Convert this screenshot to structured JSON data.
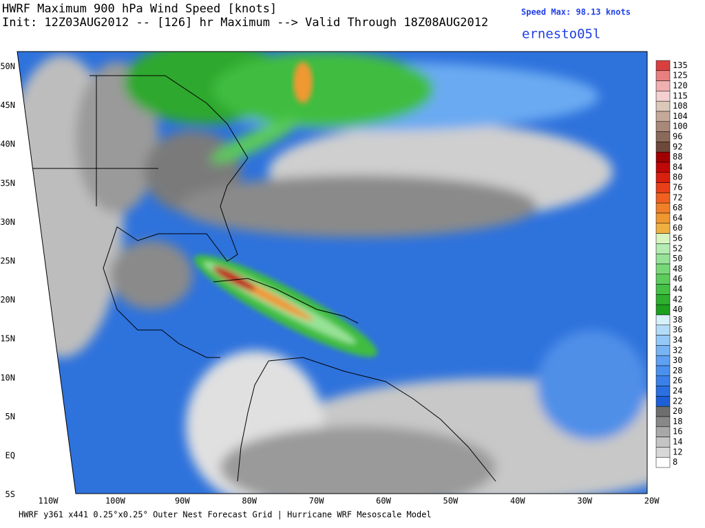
{
  "header": {
    "title": "HWRF Maximum 900 hPa Wind Speed [knots]",
    "subtitle": "Init: 12Z03AUG2012 -- [126] hr Maximum --> Valid Through 18Z08AUG2012",
    "speed_max": "Speed Max: 98.13 knots",
    "storm": "ernesto05l"
  },
  "lat_labels": [
    "50N",
    "45N",
    "40N",
    "35N",
    "30N",
    "25N",
    "20N",
    "15N",
    "10N",
    "5N",
    "EQ",
    "5S"
  ],
  "lon_labels": [
    "110W",
    "100W",
    "90W",
    "80W",
    "70W",
    "60W",
    "50W",
    "40W",
    "30W",
    "20W"
  ],
  "colorbar": {
    "levels": [
      135,
      125,
      120,
      115,
      108,
      104,
      100,
      96,
      92,
      88,
      84,
      80,
      76,
      72,
      68,
      64,
      60,
      56,
      52,
      50,
      48,
      46,
      44,
      42,
      40,
      38,
      36,
      34,
      32,
      30,
      28,
      26,
      24,
      22,
      20,
      18,
      16,
      14,
      12,
      8
    ],
    "colors": [
      "#d84040",
      "#e88080",
      "#f0b0b0",
      "#f4d0d0",
      "#dcc8b8",
      "#c4a898",
      "#a88878",
      "#8a6a5a",
      "#6e4838",
      "#a00000",
      "#c00808",
      "#d82010",
      "#e84018",
      "#f06020",
      "#f08028",
      "#f09830",
      "#f0b040",
      "#d8f4c0",
      "#b4ecb4",
      "#96e296",
      "#78d878",
      "#5ccc5c",
      "#44c044",
      "#2eb02e",
      "#1ea01e",
      "#d8f0fa",
      "#b4dcf8",
      "#94c8f6",
      "#78b4f4",
      "#5ea0f2",
      "#4a90ee",
      "#3a80e8",
      "#2a70e0",
      "#1e5fd7",
      "#6e6e6e",
      "#888888",
      "#a8a8a8",
      "#c4c4c4",
      "#d8d8d8",
      "#ffffff"
    ]
  },
  "footer": "HWRF y361 x441 0.25°x0.25° Outer Nest Forecast Grid | Hurricane WRF Mesoscale Model"
}
